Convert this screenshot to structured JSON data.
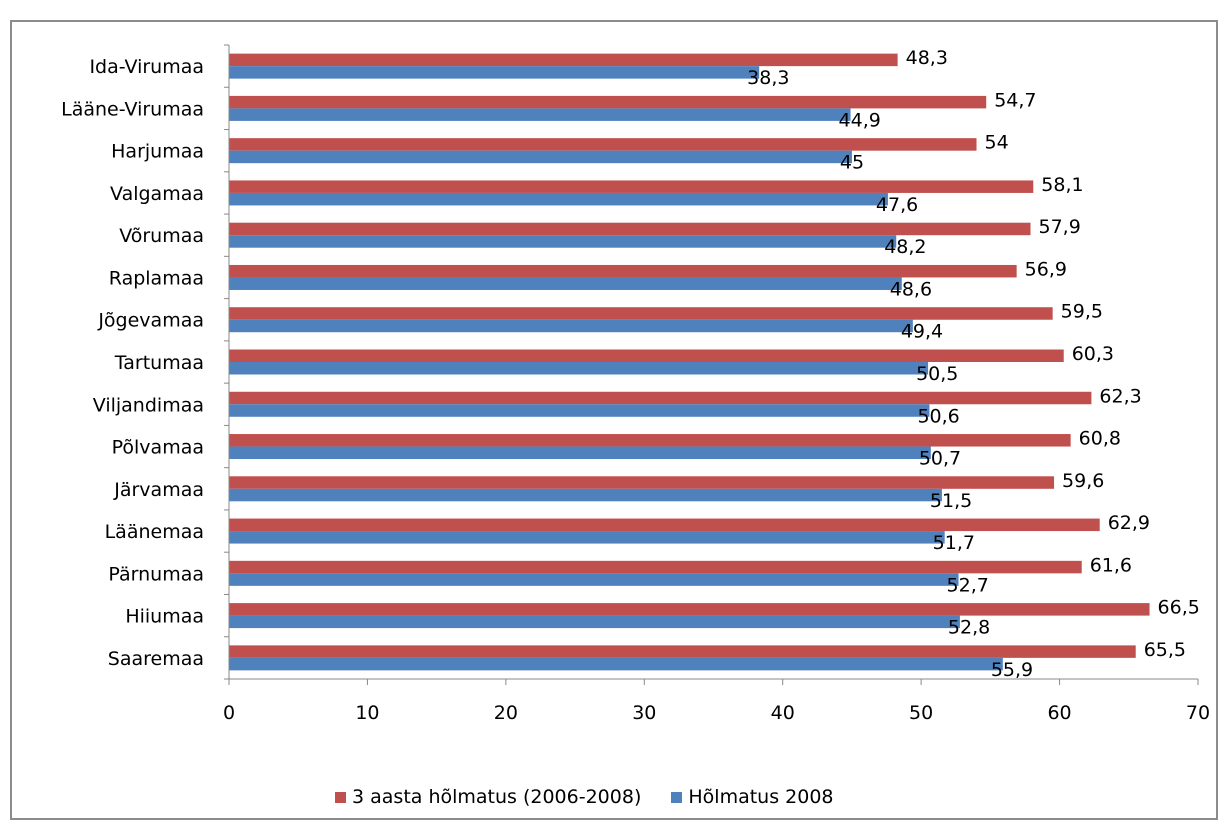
{
  "chart_data": {
    "type": "bar",
    "orientation": "horizontal",
    "categories": [
      "Ida-Virumaa",
      "Lääne-Virumaa",
      "Harjumaa",
      "Valgamaa",
      "Võrumaa",
      "Raplamaa",
      "Jõgevamaa",
      "Tartumaa",
      "Viljandimaa",
      "Põlvamaa",
      "Järvamaa",
      "Läänemaa",
      "Pärnumaa",
      "Hiiumaa",
      "Saaremaa"
    ],
    "series": [
      {
        "name": "3 aasta hõlmatus (2006-2008)",
        "color": "#c0504d",
        "values": [
          48.3,
          54.7,
          54,
          58.1,
          57.9,
          56.9,
          59.5,
          60.3,
          62.3,
          60.8,
          59.6,
          62.9,
          61.6,
          66.5,
          65.5
        ],
        "labels": [
          "48,3",
          "54,7",
          "54",
          "58,1",
          "57,9",
          "56,9",
          "59,5",
          "60,3",
          "62,3",
          "60,8",
          "59,6",
          "62,9",
          "61,6",
          "66,5",
          "65,5"
        ]
      },
      {
        "name": "Hõlmatus 2008",
        "color": "#4f81bd",
        "values": [
          38.3,
          44.9,
          45,
          47.6,
          48.2,
          48.6,
          49.4,
          50.5,
          50.6,
          50.7,
          51.5,
          51.7,
          52.7,
          52.8,
          55.9
        ],
        "labels": [
          "38,3",
          "44,9",
          "45",
          "47,6",
          "48,2",
          "48,6",
          "49,4",
          "50,5",
          "50,6",
          "50,7",
          "51,5",
          "51,7",
          "52,7",
          "52,8",
          "55,9"
        ]
      }
    ],
    "xlim": [
      0,
      70
    ],
    "xticks": [
      0,
      10,
      20,
      30,
      40,
      50,
      60,
      70
    ],
    "grid": false,
    "legend_position": "bottom"
  }
}
